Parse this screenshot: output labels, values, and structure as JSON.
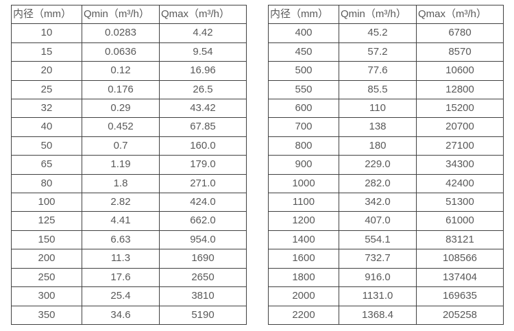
{
  "colors": {
    "table_border": "#404040",
    "text": "#595959",
    "background": "#ffffff"
  },
  "tables": [
    {
      "name": "flow-rates-small-diameters",
      "headers": [
        "内径（mm）",
        "Qmin（m³/h）",
        "Qmax（m³/h）"
      ],
      "rows": [
        [
          "10",
          "0.0283",
          "4.42"
        ],
        [
          "15",
          "0.0636",
          "9.54"
        ],
        [
          "20",
          "0.12",
          "16.96"
        ],
        [
          "25",
          "0.176",
          "26.5"
        ],
        [
          "32",
          "0.29",
          "43.42"
        ],
        [
          "40",
          "0.452",
          "67.85"
        ],
        [
          "50",
          "0.7",
          "160.0"
        ],
        [
          "65",
          "1.19",
          "179.0"
        ],
        [
          "80",
          "1.8",
          "271.0"
        ],
        [
          "100",
          "2.82",
          "424.0"
        ],
        [
          "125",
          "4.41",
          "662.0"
        ],
        [
          "150",
          "6.63",
          "954.0"
        ],
        [
          "200",
          "11.3",
          "1690"
        ],
        [
          "250",
          "17.6",
          "2650"
        ],
        [
          "300",
          "25.4",
          "3810"
        ],
        [
          "350",
          "34.6",
          "5190"
        ]
      ]
    },
    {
      "name": "flow-rates-large-diameters",
      "headers": [
        "内径（mm）",
        "Qmin（m³/h）",
        "Qmax（m³/h）"
      ],
      "rows": [
        [
          "400",
          "45.2",
          "6780"
        ],
        [
          "450",
          "57.2",
          "8570"
        ],
        [
          "500",
          "77.6",
          "10600"
        ],
        [
          "550",
          "85.5",
          "12800"
        ],
        [
          "600",
          "110",
          "15200"
        ],
        [
          "700",
          "138",
          "20700"
        ],
        [
          "800",
          "180",
          "27100"
        ],
        [
          "900",
          "229.0",
          "34300"
        ],
        [
          "1000",
          "282.0",
          "42400"
        ],
        [
          "1100",
          "342.0",
          "51300"
        ],
        [
          "1200",
          "407.0",
          "61000"
        ],
        [
          "1400",
          "554.1",
          "83121"
        ],
        [
          "1600",
          "732.7",
          "108566"
        ],
        [
          "1800",
          "916.0",
          "137404"
        ],
        [
          "2000",
          "1131.0",
          "169635"
        ],
        [
          "2200",
          "1368.4",
          "205258"
        ]
      ]
    }
  ]
}
